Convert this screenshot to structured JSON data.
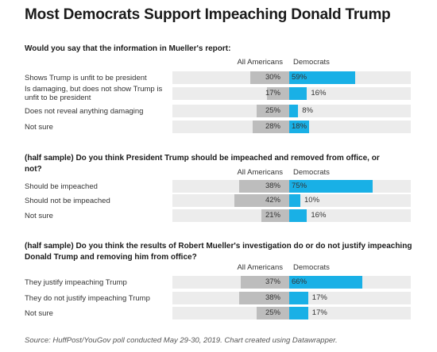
{
  "title": "Most Democrats Support Impeaching Donald Trump",
  "source": "Source: HuffPost/YouGov poll conducted May 29-30, 2019. Chart created using Datawrapper.",
  "colors": {
    "all_americans": "#bdbdbd",
    "democrats": "#19b0e6",
    "band": "#ececec"
  },
  "chart_data": [
    {
      "type": "bar",
      "title": "Would you say that the information in Mueller's report:",
      "series": [
        {
          "name": "All Americans",
          "values": [
            30,
            17,
            25,
            28
          ]
        },
        {
          "name": "Democrats",
          "values": [
            59,
            16,
            8,
            18
          ]
        }
      ],
      "categories": [
        "Shows Trump is unfit to be president",
        "Is damaging, but does not show Trump is unfit to be president",
        "Does not reveal anything damaging",
        "Not sure"
      ],
      "value_labels": {
        "All Americans": [
          "30%",
          "17%",
          "25%",
          "28%"
        ],
        "Democrats": [
          "59%",
          "16%",
          "8%",
          "18%"
        ]
      }
    },
    {
      "type": "bar",
      "title": "(half sample) Do you think President Trump should be impeached and removed from office, or not?",
      "series": [
        {
          "name": "All Americans",
          "values": [
            38,
            42,
            21
          ]
        },
        {
          "name": "Democrats",
          "values": [
            75,
            10,
            16
          ]
        }
      ],
      "categories": [
        "Should be impeached",
        "Should not be impeached",
        "Not sure"
      ],
      "value_labels": {
        "All Americans": [
          "38%",
          "42%",
          "21%"
        ],
        "Democrats": [
          "75%",
          "10%",
          "16%"
        ]
      }
    },
    {
      "type": "bar",
      "title": "(half sample) Do you think the results of Robert Mueller's investigation do or do not justify impeaching Donald Trump and removing him from office?",
      "series": [
        {
          "name": "All Americans",
          "values": [
            37,
            38,
            25
          ]
        },
        {
          "name": "Democrats",
          "values": [
            66,
            17,
            17
          ]
        }
      ],
      "categories": [
        "They justify impeaching Trump",
        "They do not justify impeaching Trump",
        "Not sure"
      ],
      "value_labels": {
        "All Americans": [
          "37%",
          "38%",
          "25%"
        ],
        "Democrats": [
          "66%",
          "17%",
          "17%"
        ]
      }
    }
  ]
}
